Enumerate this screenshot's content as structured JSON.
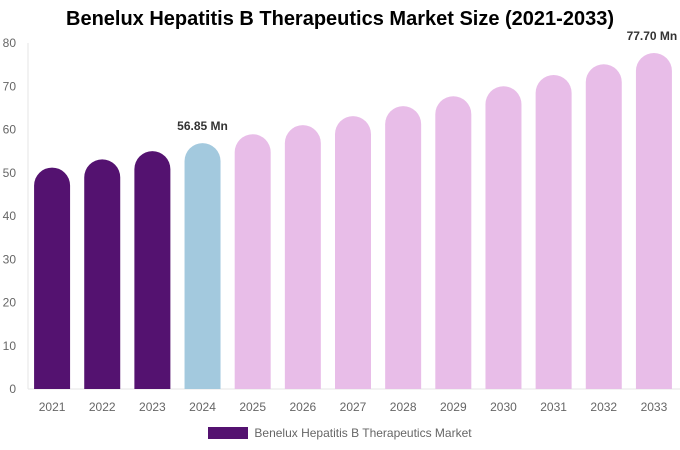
{
  "chart_data": {
    "type": "bar",
    "title": "Benelux Hepatitis B Therapeutics Market Size (2021-2033)",
    "categories": [
      "2021",
      "2022",
      "2023",
      "2024",
      "2025",
      "2026",
      "2027",
      "2028",
      "2029",
      "2030",
      "2031",
      "2032",
      "2033"
    ],
    "series": [
      {
        "name": "Benelux Hepatitis B Therapeutics Market",
        "values": [
          51.2,
          53.1,
          55.0,
          56.85,
          58.9,
          61.0,
          63.1,
          65.4,
          67.7,
          70.0,
          72.6,
          75.1,
          77.7
        ]
      }
    ],
    "data_labels": {
      "3": "56.85 Mn",
      "12": "77.70 Mn"
    },
    "ylim": [
      0,
      80
    ],
    "yticks": [
      0,
      10,
      20,
      30,
      40,
      50,
      60,
      70,
      80
    ],
    "grid": false,
    "legend": "bottom",
    "colors": {
      "historical": "#541270",
      "base_year": "#a3c9de",
      "forecast": "#e8bde8"
    }
  }
}
